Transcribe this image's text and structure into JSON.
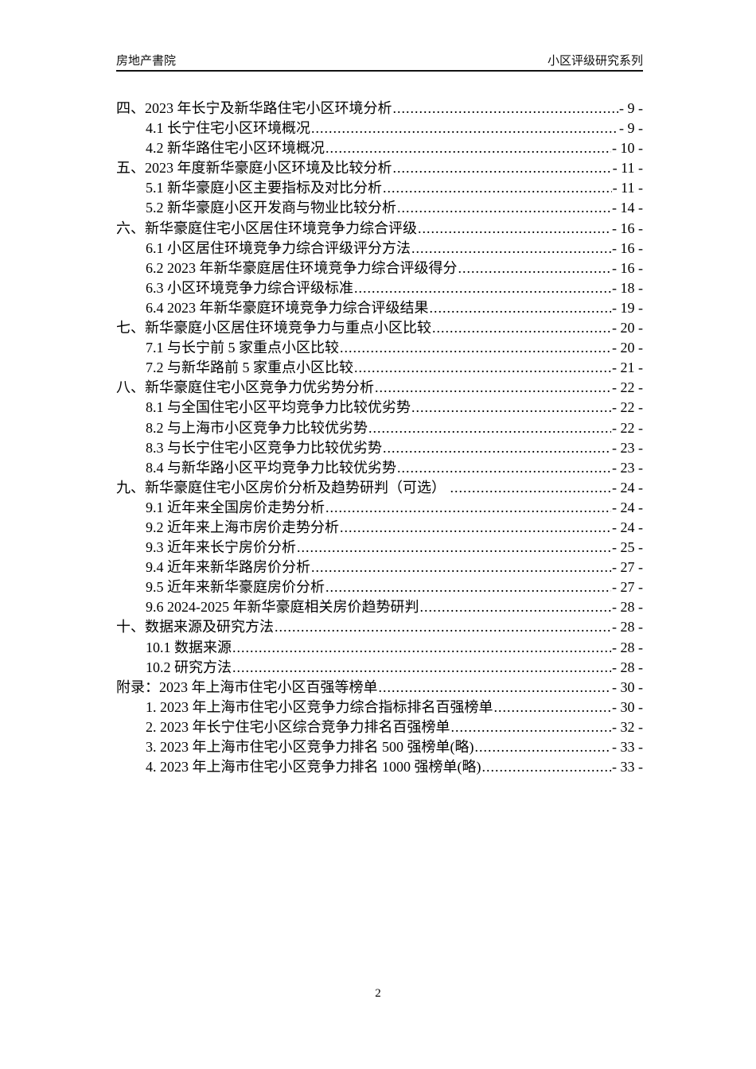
{
  "header": {
    "left_text": "房地产書院",
    "right_text": "小区评级研究系列"
  },
  "toc": {
    "entries": [
      {
        "level": 0,
        "text": "四、2023 年长宁及新华路住宅小区环境分析",
        "page": "- 9 -"
      },
      {
        "level": 1,
        "text": "4.1 长宁住宅小区环境概况",
        "page": "- 9 -"
      },
      {
        "level": 1,
        "text": "4.2 新华路住宅小区环境概况",
        "page": "- 10 -"
      },
      {
        "level": 0,
        "text": "五、2023 年度新华豪庭小区环境及比较分析",
        "page": "- 11 -"
      },
      {
        "level": 1,
        "text": "5.1 新华豪庭小区主要指标及对比分析",
        "page": "- 11 -"
      },
      {
        "level": 1,
        "text": "5.2 新华豪庭小区开发商与物业比较分析",
        "page": "- 14 -"
      },
      {
        "level": 0,
        "text": "六、新华豪庭住宅小区居住环境竞争力综合评级",
        "page": "- 16 -"
      },
      {
        "level": 1,
        "text": "6.1 小区居住环境竞争力综合评级评分方法",
        "page": "- 16 -"
      },
      {
        "level": 1,
        "text": "6.2 2023 年新华豪庭居住环境竞争力综合评级得分",
        "page": "- 16 -"
      },
      {
        "level": 1,
        "text": "6.3 小区环境竞争力综合评级标准",
        "page": "- 18 -"
      },
      {
        "level": 1,
        "text": "6.4 2023 年新华豪庭环境竞争力综合评级结果",
        "page": "- 19 -"
      },
      {
        "level": 0,
        "text": "七、新华豪庭小区居住环境竞争力与重点小区比较",
        "page": "- 20 -"
      },
      {
        "level": 1,
        "text": "7.1 与长宁前 5 家重点小区比较",
        "page": "- 20 -"
      },
      {
        "level": 1,
        "text": "7.2 与新华路前 5 家重点小区比较",
        "page": "- 21 -"
      },
      {
        "level": 0,
        "text": "八、新华豪庭住宅小区竞争力优劣势分析",
        "page": "- 22 -"
      },
      {
        "level": 1,
        "text": "8.1 与全国住宅小区平均竞争力比较优劣势",
        "page": "- 22 -"
      },
      {
        "level": 1,
        "text": "8.2 与上海市小区竞争力比较优劣势",
        "page": "- 22 -"
      },
      {
        "level": 1,
        "text": "8.3 与长宁住宅小区竞争力比较优劣势",
        "page": "- 23 -"
      },
      {
        "level": 1,
        "text": "8.4 与新华路小区平均竞争力比较优劣势",
        "page": "- 23 -"
      },
      {
        "level": 0,
        "text": "九、新华豪庭住宅小区房价分析及趋势研判（可选） ",
        "page": "- 24 -"
      },
      {
        "level": 1,
        "text": "9.1 近年来全国房价走势分析",
        "page": "- 24 -"
      },
      {
        "level": 1,
        "text": "9.2 近年来上海市房价走势分析",
        "page": "- 24 -"
      },
      {
        "level": 1,
        "text": "9.3 近年来长宁房价分析",
        "page": "- 25 -"
      },
      {
        "level": 1,
        "text": "9.4 近年来新华路房价分析",
        "page": "- 27 -"
      },
      {
        "level": 1,
        "text": "9.5 近年来新华豪庭房价分析",
        "page": "- 27 -"
      },
      {
        "level": 1,
        "text": "9.6 2024-2025 年新华豪庭相关房价趋势研判",
        "page": "- 28 -"
      },
      {
        "level": 0,
        "text": "十、数据来源及研究方法",
        "page": "- 28 -"
      },
      {
        "level": 1,
        "text": "10.1 数据来源",
        "page": "- 28 -"
      },
      {
        "level": 1,
        "text": "10.2 研究方法",
        "page": "- 28 -"
      },
      {
        "level": 0,
        "text": "附录：2023 年上海市住宅小区百强等榜单",
        "page": "- 30 -"
      },
      {
        "level": 1,
        "text": "1. 2023 年上海市住宅小区竞争力综合指标排名百强榜单",
        "page": "- 30 -"
      },
      {
        "level": 1,
        "text": "2. 2023 年长宁住宅小区综合竞争力排名百强榜单",
        "page": "- 32 -"
      },
      {
        "level": 1,
        "text": "3. 2023 年上海市住宅小区竞争力排名 500 强榜单(略)",
        "page": "- 33 -"
      },
      {
        "level": 1,
        "text": "4. 2023 年上海市住宅小区竞争力排名 1000 强榜单(略)",
        "page": "- 33 -"
      }
    ]
  },
  "footer": {
    "page_number": "2"
  }
}
